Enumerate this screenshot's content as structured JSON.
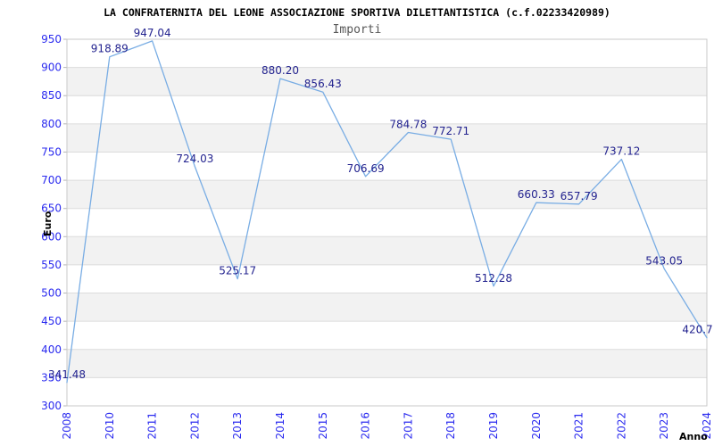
{
  "title": "LA CONFRATERNITA DEL LEONE ASSOCIAZIONE SPORTIVA DILETTANTISTICA (c.f.02233420989)",
  "subtitle": "Importi",
  "chart_data": {
    "type": "line",
    "title": "LA CONFRATERNITA DEL LEONE ASSOCIAZIONE SPORTIVA DILETTANTISTICA (c.f.02233420989)",
    "subtitle": "Importi",
    "xlabel": "Anno",
    "ylabel": "Euro",
    "categories": [
      "2008",
      "2010",
      "2011",
      "2012",
      "2013",
      "2014",
      "2015",
      "2016",
      "2017",
      "2018",
      "2019",
      "2020",
      "2021",
      "2022",
      "2023",
      "2024"
    ],
    "series": [
      {
        "name": "Importi",
        "values": [
          341.48,
          918.89,
          947.04,
          724.03,
          525.17,
          880.2,
          856.43,
          706.69,
          784.78,
          772.71,
          512.28,
          660.33,
          657.79,
          737.12,
          543.05,
          420.7
        ],
        "value_labels": [
          "341.48",
          "918.89",
          "947.04",
          "724.03",
          "525.17",
          "880.20",
          "856.43",
          "706.69",
          "784.78",
          "772.71",
          "512.28",
          "660.33",
          "657.79",
          "737.12",
          "543.05",
          "420.7"
        ]
      }
    ],
    "ylim": [
      300,
      950
    ],
    "ytick_step": 50,
    "ytick_labels": [
      "300",
      "350",
      "400",
      "450",
      "500",
      "550",
      "600",
      "650",
      "700",
      "750",
      "800",
      "850",
      "900",
      "950"
    ],
    "grid": "horizontal",
    "legend": "none",
    "band_pattern": "alternating-horizontal",
    "colors": {
      "line": "#79ade4",
      "value_label": "#23238f",
      "tick_label": "#2b2bef",
      "axis_title": "#000000",
      "band_gray": "#f2f2f2",
      "band_white": "#ffffff",
      "gridline": "#dcdcdc",
      "border": "#c9c9c9",
      "tick_mark": "#b5b5b5",
      "title": "#000000",
      "subtitle": "#575757"
    }
  }
}
